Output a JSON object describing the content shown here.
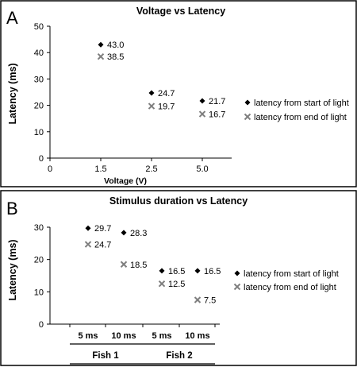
{
  "chart_data": [
    {
      "panel": "A",
      "type": "scatter",
      "title": "Voltage vs Latency",
      "xlabel": "Voltage (V)",
      "ylabel": "Latency (ms)",
      "ylim": [
        0,
        50
      ],
      "yticks": [
        "0",
        "10",
        "20",
        "30",
        "40",
        "50"
      ],
      "xticks": [
        "0",
        "1.5",
        "2.5",
        "5.0"
      ],
      "categories": [
        "1.5",
        "2.5",
        "5.0"
      ],
      "series": [
        {
          "name": "latency from start of light",
          "marker": "diamond",
          "color": "#000000",
          "values": [
            43.0,
            24.7,
            21.7
          ],
          "labels": [
            "43.0",
            "24.7",
            "21.7"
          ]
        },
        {
          "name": "latency from end of light",
          "marker": "x",
          "color": "#7f7f7f",
          "values": [
            38.5,
            19.7,
            16.7
          ],
          "labels": [
            "38.5",
            "19.7",
            "16.7"
          ]
        }
      ],
      "grid": false,
      "legend": "right"
    },
    {
      "panel": "B",
      "type": "scatter",
      "title": "Stimulus duration vs Latency",
      "xlabel": "",
      "ylabel": "Latency (ms)",
      "ylim": [
        0,
        30
      ],
      "yticks": [
        "0",
        "10",
        "20",
        "30"
      ],
      "categories": [
        "5 ms",
        "10 ms",
        "5 ms",
        "10 ms"
      ],
      "groups": [
        "Fish 1",
        "Fish 2"
      ],
      "series": [
        {
          "name": "latency from start of light",
          "marker": "diamond",
          "color": "#000000",
          "values": [
            29.7,
            28.3,
            16.5,
            16.5
          ],
          "labels": [
            "29.7",
            "28.3",
            "16.5",
            "16.5"
          ]
        },
        {
          "name": "latency from end of light",
          "marker": "x",
          "color": "#7f7f7f",
          "values": [
            24.7,
            18.5,
            12.5,
            7.5
          ],
          "labels": [
            "24.7",
            "18.5",
            "12.5",
            "7.5"
          ]
        }
      ],
      "grid": false,
      "legend": "right"
    }
  ]
}
